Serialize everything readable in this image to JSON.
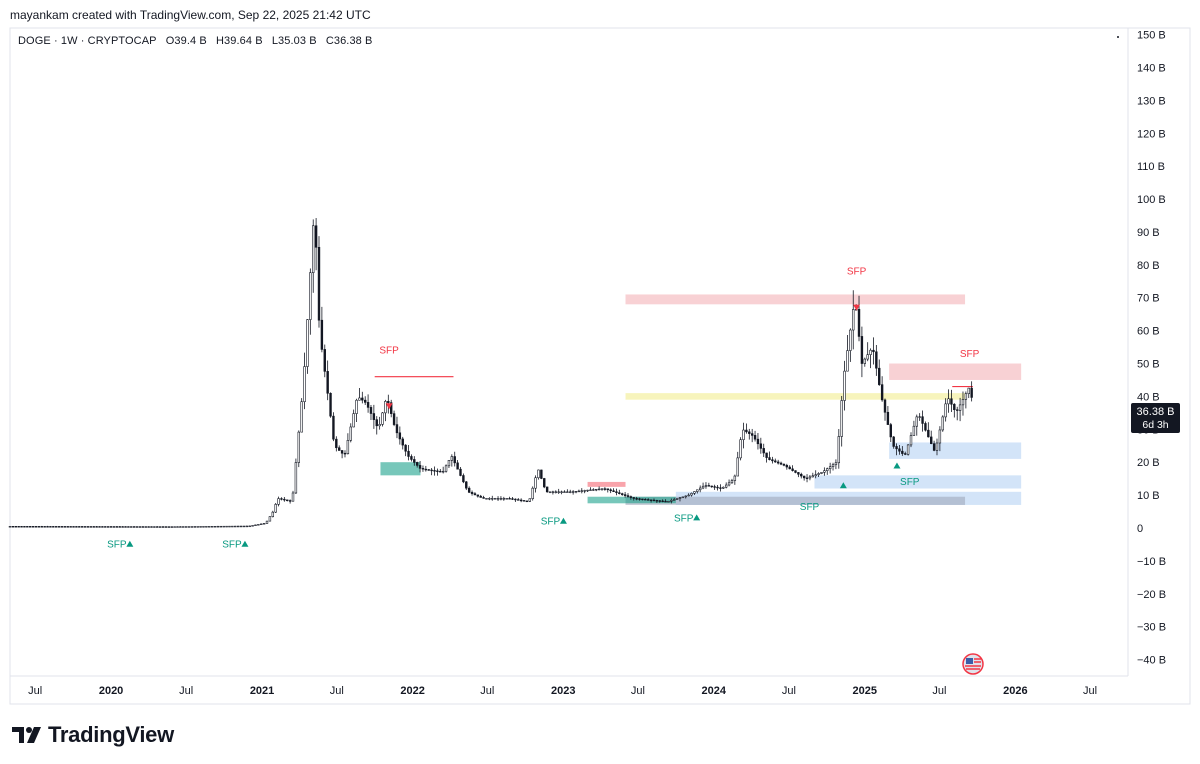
{
  "header": {
    "created_by": "mayankam created with TradingView.com, Sep 22, 2025 21:42 UTC"
  },
  "legend": {
    "symbol": "DOGE · 1W · CRYPTOCAP",
    "open": "O39.4 B",
    "high": "H39.64 B",
    "low": "L35.03 B",
    "close": "C36.38 B"
  },
  "price_label": {
    "value": "36.38 B",
    "countdown": "6d 3h",
    "color": "#131722"
  },
  "brand": {
    "name": "TradingView",
    "logo_icon": "tradingview-logo-icon"
  },
  "flag_icon": "us-flag-icon",
  "colors": {
    "bull_zone": "#089981",
    "bear_zone": "#f23645",
    "support_fill": "#bbd5f5",
    "resistance_fill": "#f7c9cd",
    "mid_fill": "#f6f3b5",
    "candle": "#131722"
  },
  "chart_data": {
    "type": "candlestick",
    "symbol": "DOGE",
    "interval": "1W",
    "x_axis": {
      "range": [
        "2019-05-01",
        "2026-10-01"
      ],
      "ticks": [
        {
          "label": "Jul",
          "date": "2019-07-01",
          "bold": false
        },
        {
          "label": "2020",
          "date": "2020-01-01",
          "bold": true
        },
        {
          "label": "Jul",
          "date": "2020-07-01",
          "bold": false
        },
        {
          "label": "2021",
          "date": "2021-01-01",
          "bold": true
        },
        {
          "label": "Jul",
          "date": "2021-07-01",
          "bold": false
        },
        {
          "label": "2022",
          "date": "2022-01-01",
          "bold": true
        },
        {
          "label": "Jul",
          "date": "2022-07-01",
          "bold": false
        },
        {
          "label": "2023",
          "date": "2023-01-01",
          "bold": true
        },
        {
          "label": "Jul",
          "date": "2023-07-01",
          "bold": false
        },
        {
          "label": "2024",
          "date": "2024-01-01",
          "bold": true
        },
        {
          "label": "Jul",
          "date": "2024-07-01",
          "bold": false
        },
        {
          "label": "2025",
          "date": "2025-01-01",
          "bold": true
        },
        {
          "label": "Jul",
          "date": "2025-07-01",
          "bold": false
        },
        {
          "label": "2026",
          "date": "2026-01-01",
          "bold": true
        },
        {
          "label": "Jul",
          "date": "2026-07-01",
          "bold": false
        }
      ]
    },
    "y_axis": {
      "unit": "B",
      "range": [
        -45,
        152
      ],
      "ticks": [
        150,
        140,
        130,
        120,
        110,
        100,
        90,
        80,
        70,
        60,
        50,
        40,
        30,
        20,
        10,
        0,
        -10,
        -20,
        -30,
        -40
      ],
      "tick_labels": [
        "150 B",
        "140 B",
        "130 B",
        "120 B",
        "110 B",
        "100 B",
        "90 B",
        "80 B",
        "70 B",
        "60 B",
        "50 B",
        "40 B",
        "30 B",
        "20 B",
        "10 B",
        "0",
        "−10 B",
        "−20 B",
        "−30 B",
        "−40 B"
      ]
    },
    "price_path": [
      [
        "2019-05-01",
        0.5
      ],
      [
        "2020-06-01",
        0.4
      ],
      [
        "2020-12-01",
        0.6
      ],
      [
        "2021-01-10",
        1.5
      ],
      [
        "2021-01-28",
        5
      ],
      [
        "2021-02-08",
        9
      ],
      [
        "2021-03-15",
        8
      ],
      [
        "2021-04-12",
        45
      ],
      [
        "2021-05-08",
        98
      ],
      [
        "2021-05-20",
        60
      ],
      [
        "2021-06-10",
        40
      ],
      [
        "2021-06-25",
        25
      ],
      [
        "2021-07-20",
        22
      ],
      [
        "2021-08-20",
        40
      ],
      [
        "2021-09-10",
        38
      ],
      [
        "2021-10-10",
        30
      ],
      [
        "2021-10-30",
        40
      ],
      [
        "2021-11-20",
        30
      ],
      [
        "2021-12-20",
        22
      ],
      [
        "2022-01-20",
        18
      ],
      [
        "2022-03-15",
        17
      ],
      [
        "2022-04-05",
        22
      ],
      [
        "2022-05-15",
        11
      ],
      [
        "2022-06-20",
        9
      ],
      [
        "2022-08-20",
        9
      ],
      [
        "2022-10-10",
        8
      ],
      [
        "2022-11-01",
        18
      ],
      [
        "2022-11-20",
        11
      ],
      [
        "2023-01-20",
        11
      ],
      [
        "2023-04-10",
        12
      ],
      [
        "2023-06-20",
        9
      ],
      [
        "2023-09-10",
        8
      ],
      [
        "2023-11-01",
        10
      ],
      [
        "2023-12-10",
        13
      ],
      [
        "2024-01-20",
        12
      ],
      [
        "2024-02-20",
        15
      ],
      [
        "2024-03-10",
        30
      ],
      [
        "2024-04-05",
        28
      ],
      [
        "2024-05-10",
        21
      ],
      [
        "2024-06-20",
        19
      ],
      [
        "2024-08-10",
        15
      ],
      [
        "2024-09-20",
        17
      ],
      [
        "2024-10-25",
        20
      ],
      [
        "2024-11-10",
        45
      ],
      [
        "2024-12-08",
        70
      ],
      [
        "2024-12-25",
        50
      ],
      [
        "2025-01-20",
        55
      ],
      [
        "2025-02-10",
        40
      ],
      [
        "2025-03-10",
        25
      ],
      [
        "2025-04-08",
        22
      ],
      [
        "2025-05-10",
        35
      ],
      [
        "2025-06-20",
        23
      ],
      [
        "2025-07-20",
        40
      ],
      [
        "2025-08-10",
        35
      ],
      [
        "2025-09-12",
        43
      ],
      [
        "2025-09-22",
        36.38
      ]
    ],
    "zones": [
      {
        "kind": "resistance",
        "from": "2023-06-01",
        "to": "2025-09-01",
        "low": 68,
        "high": 71
      },
      {
        "kind": "resistance",
        "from": "2025-03-01",
        "to": "2026-01-15",
        "low": 45,
        "high": 50
      },
      {
        "kind": "mid",
        "from": "2023-06-01",
        "to": "2025-09-01",
        "low": 39,
        "high": 41
      },
      {
        "kind": "support",
        "from": "2025-03-01",
        "to": "2026-01-15",
        "low": 21,
        "high": 26
      },
      {
        "kind": "support",
        "from": "2024-09-01",
        "to": "2026-01-15",
        "low": 12,
        "high": 16
      },
      {
        "kind": "support",
        "from": "2023-10-01",
        "to": "2026-01-15",
        "low": 7,
        "high": 11
      },
      {
        "kind": "support_dark",
        "from": "2023-06-01",
        "to": "2025-09-01",
        "low": 7,
        "high": 9.5
      },
      {
        "kind": "bull_block",
        "from": "2021-10-15",
        "to": "2022-01-20",
        "low": 16,
        "high": 20
      },
      {
        "kind": "bull_block",
        "from": "2023-03-01",
        "to": "2023-10-01",
        "low": 7.5,
        "high": 9.5
      },
      {
        "kind": "bear_block",
        "from": "2023-03-01",
        "to": "2023-06-01",
        "low": 12.5,
        "high": 14
      }
    ],
    "level_lines": [
      {
        "kind": "bear",
        "from": "2021-10-01",
        "to": "2022-04-10",
        "value": 46
      },
      {
        "kind": "bear",
        "from": "2025-08-01",
        "to": "2025-09-20",
        "value": 43
      }
    ],
    "markers": [
      {
        "text": "SFP",
        "date": "2021-11-05",
        "value": 53,
        "color": "#f23645",
        "arrow": "down",
        "arrow_value": 37
      },
      {
        "text": "SFP",
        "date": "2024-12-12",
        "value": 77,
        "color": "#f23645",
        "arrow": "down",
        "arrow_value": 67
      },
      {
        "text": "SFP",
        "date": "2025-09-12",
        "value": 52,
        "color": "#f23645",
        "arrow": "none"
      },
      {
        "text": "SFP",
        "date": "2020-01-15",
        "value": -6,
        "color": "#089981",
        "arrow": "up"
      },
      {
        "text": "SFP",
        "date": "2020-10-20",
        "value": -6,
        "color": "#089981",
        "arrow": "up"
      },
      {
        "text": "SFP",
        "date": "2022-12-01",
        "value": 1,
        "color": "#089981",
        "arrow": "up"
      },
      {
        "text": "SFP",
        "date": "2023-10-20",
        "value": 2,
        "color": "#089981",
        "arrow": "up"
      },
      {
        "text": "SFP",
        "date": "2024-08-20",
        "value": 5.5,
        "color": "#089981",
        "arrow": "none"
      },
      {
        "text": "SFP",
        "date": "2025-04-20",
        "value": 13,
        "color": "#089981",
        "arrow": "none"
      }
    ],
    "up_arrows": [
      {
        "date": "2024-11-10",
        "value": 13
      },
      {
        "date": "2025-03-20",
        "value": 19
      }
    ]
  }
}
